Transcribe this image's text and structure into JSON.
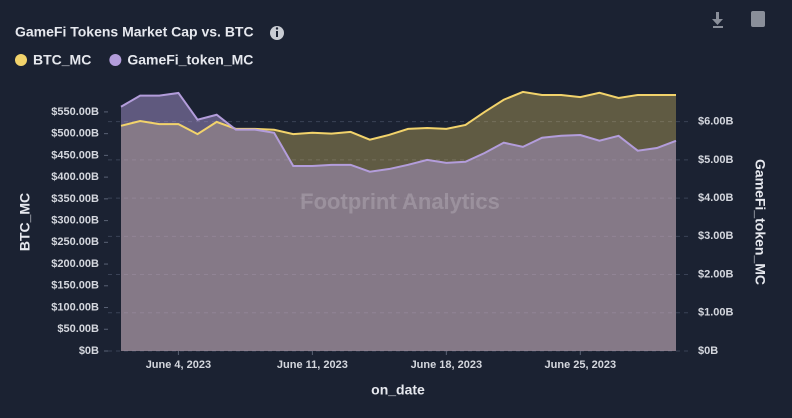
{
  "chart_data": {
    "type": "area",
    "title": "GameFi Tokens Market Cap vs. BTC",
    "watermark": "Footprint Analytics",
    "xlabel": "on_date",
    "ylabel": "BTC_MC",
    "y2label": "GameFi_token_MC",
    "x": [
      "2023-06-01",
      "2023-06-02",
      "2023-06-03",
      "2023-06-04",
      "2023-06-05",
      "2023-06-06",
      "2023-06-07",
      "2023-06-08",
      "2023-06-09",
      "2023-06-10",
      "2023-06-11",
      "2023-06-12",
      "2023-06-13",
      "2023-06-14",
      "2023-06-15",
      "2023-06-16",
      "2023-06-17",
      "2023-06-18",
      "2023-06-19",
      "2023-06-20",
      "2023-06-21",
      "2023-06-22",
      "2023-06-23",
      "2023-06-24",
      "2023-06-25",
      "2023-06-26",
      "2023-06-27",
      "2023-06-28",
      "2023-06-29",
      "2023-06-30"
    ],
    "xlim": [
      "2023-06-01",
      "2023-06-30"
    ],
    "xticks": [
      {
        "value": "2023-06-04",
        "label": "June 4, 2023"
      },
      {
        "value": "2023-06-11",
        "label": "June 11, 2023"
      },
      {
        "value": "2023-06-18",
        "label": "June 18, 2023"
      },
      {
        "value": "2023-06-25",
        "label": "June 25, 2023"
      }
    ],
    "ylim": [
      0,
      605
    ],
    "yticks": [
      {
        "value": 0,
        "label": "$0B"
      },
      {
        "value": 50,
        "label": "$50.00B"
      },
      {
        "value": 100,
        "label": "$100.00B"
      },
      {
        "value": 150,
        "label": "$150.00B"
      },
      {
        "value": 200,
        "label": "$200.00B"
      },
      {
        "value": 250,
        "label": "$250.00B"
      },
      {
        "value": 300,
        "label": "$300.00B"
      },
      {
        "value": 350,
        "label": "$350.00B"
      },
      {
        "value": 400,
        "label": "$400.00B"
      },
      {
        "value": 450,
        "label": "$450.00B"
      },
      {
        "value": 500,
        "label": "$500.00B"
      },
      {
        "value": 550,
        "label": "$550.00B"
      }
    ],
    "y2lim": [
      0,
      6.88
    ],
    "y2ticks": [
      {
        "value": 0,
        "label": "$0B"
      },
      {
        "value": 1,
        "label": "$1.00B"
      },
      {
        "value": 2,
        "label": "$2.00B"
      },
      {
        "value": 3,
        "label": "$3.00B"
      },
      {
        "value": 4,
        "label": "$4.00B"
      },
      {
        "value": 5,
        "label": "$5.00B"
      },
      {
        "value": 6,
        "label": "$6.00B"
      }
    ],
    "grid": true,
    "series": [
      {
        "name": "BTC_MC",
        "color": "#f2d36b",
        "axis": "y",
        "values": [
          518,
          529,
          522,
          522,
          499,
          527,
          511,
          511,
          509,
          499,
          502,
          500,
          504,
          486,
          497,
          511,
          513,
          511,
          520,
          550,
          578,
          596,
          589,
          589,
          584,
          594,
          582,
          589,
          589,
          589
        ]
      },
      {
        "name": "GameFi_token_MC",
        "color": "#b39ddb",
        "axis": "y2",
        "values": [
          6.39,
          6.68,
          6.68,
          6.75,
          6.05,
          6.18,
          5.79,
          5.79,
          5.71,
          4.84,
          4.84,
          4.87,
          4.87,
          4.69,
          4.76,
          4.87,
          5.0,
          4.92,
          4.95,
          5.18,
          5.45,
          5.34,
          5.58,
          5.63,
          5.65,
          5.5,
          5.63,
          5.24,
          5.31,
          5.5
        ]
      }
    ]
  }
}
